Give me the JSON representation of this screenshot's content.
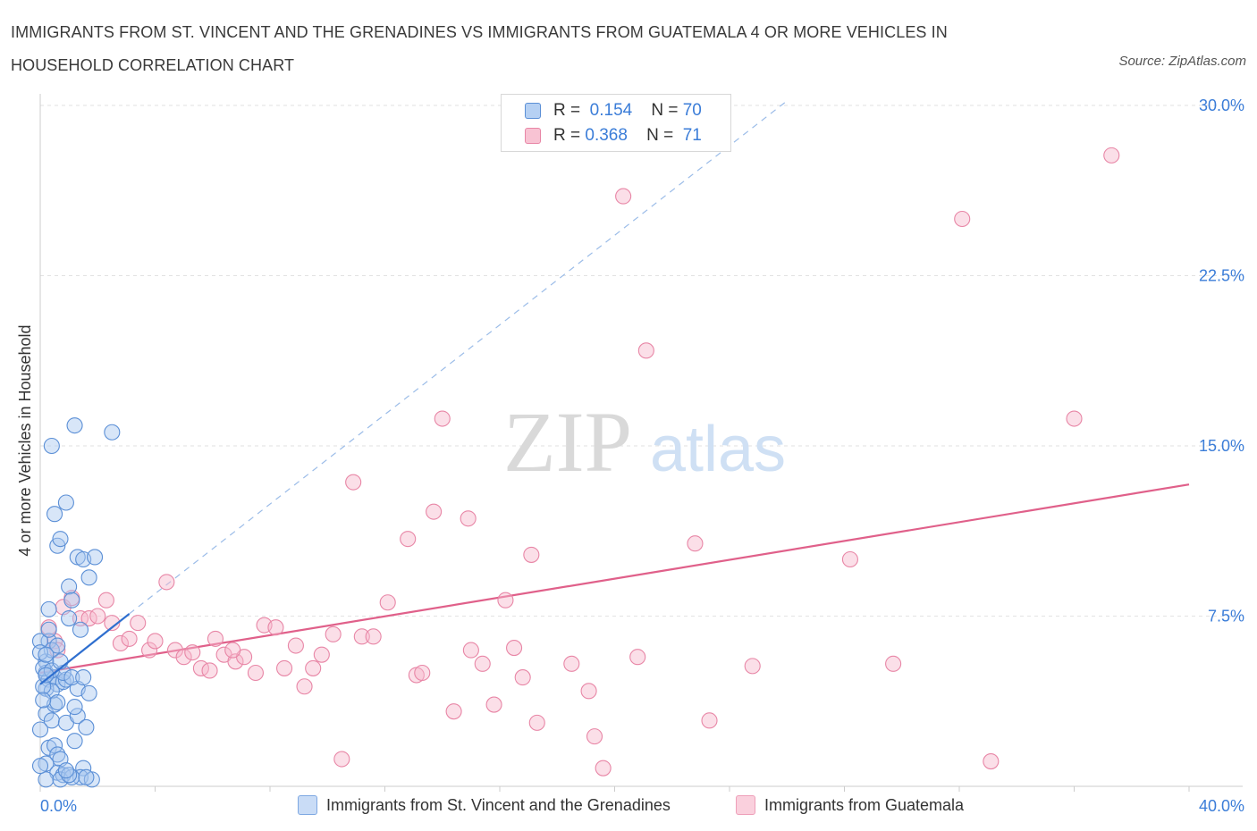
{
  "header": {
    "title": "IMMIGRANTS FROM ST. VINCENT AND THE GRENADINES VS IMMIGRANTS FROM GUATEMALA 4 OR MORE VEHICLES IN HOUSEHOLD CORRELATION CHART",
    "source": "Source: ZipAtlas.com"
  },
  "watermark": {
    "zip": "ZIP",
    "atlas": "atlas"
  },
  "legend": {
    "r_label": "R =",
    "n_label": "N =",
    "series": [
      {
        "r": "0.154",
        "n": "70"
      },
      {
        "r": "0.368",
        "n": "71"
      }
    ]
  },
  "colors": {
    "blue_fill": "#a9c8f0",
    "blue_stroke": "#5b8fd6",
    "blue_line": "#2f6fcf",
    "pink_fill": "#f6b9cc",
    "pink_stroke": "#e886a6",
    "pink_line": "#e0608a",
    "axis_text": "#3b7dd8",
    "grid": "#e2e2e2"
  },
  "chart_data": {
    "type": "scatter",
    "xlabel": "",
    "ylabel": "4 or more Vehicles in Household",
    "xlim": [
      0,
      40
    ],
    "ylim": [
      0,
      30
    ],
    "x_tick_labels": [
      "0.0%",
      "40.0%"
    ],
    "y_ticks": [
      7.5,
      15.0,
      22.5,
      30.0
    ],
    "y_tick_labels": [
      "7.5%",
      "15.0%",
      "22.5%",
      "30.0%"
    ],
    "grid": "horizontal dashed",
    "legend_placement": "top-center",
    "series": [
      {
        "name": "Immigrants from St. Vincent and the Grenadines",
        "color": "#a9c8f0",
        "trend": {
          "x": [
            0.0,
            3.1
          ],
          "y": [
            4.5,
            7.6
          ],
          "extended_to": [
            26.0,
            30.2
          ]
        },
        "points": [
          [
            0.2,
            5.5
          ],
          [
            0.3,
            7.8
          ],
          [
            0.4,
            15.0
          ],
          [
            0.5,
            12.0
          ],
          [
            0.6,
            10.6
          ],
          [
            0.7,
            10.9
          ],
          [
            0.9,
            12.5
          ],
          [
            1.0,
            8.8
          ],
          [
            1.1,
            8.2
          ],
          [
            1.3,
            10.1
          ],
          [
            1.5,
            10.0
          ],
          [
            1.7,
            9.2
          ],
          [
            1.9,
            10.1
          ],
          [
            1.2,
            15.9
          ],
          [
            2.5,
            15.6
          ],
          [
            0.3,
            6.4
          ],
          [
            0.4,
            6.0
          ],
          [
            0.6,
            6.2
          ],
          [
            0.2,
            5.0
          ],
          [
            0.3,
            4.7
          ],
          [
            0.5,
            4.8
          ],
          [
            0.6,
            4.5
          ],
          [
            0.8,
            4.6
          ],
          [
            0.9,
            4.7
          ],
          [
            0.2,
            4.3
          ],
          [
            0.4,
            4.2
          ],
          [
            1.3,
            4.3
          ],
          [
            1.7,
            4.1
          ],
          [
            0.2,
            3.2
          ],
          [
            0.4,
            2.9
          ],
          [
            0.9,
            2.8
          ],
          [
            1.3,
            3.1
          ],
          [
            1.6,
            2.6
          ],
          [
            0.3,
            1.7
          ],
          [
            0.5,
            1.8
          ],
          [
            0.6,
            1.4
          ],
          [
            0.7,
            1.2
          ],
          [
            0.2,
            1.0
          ],
          [
            0.6,
            0.6
          ],
          [
            0.8,
            0.5
          ],
          [
            1.5,
            0.8
          ],
          [
            1.4,
            0.4
          ],
          [
            0.2,
            0.3
          ],
          [
            0.7,
            0.3
          ],
          [
            1.1,
            0.4
          ],
          [
            1.8,
            0.3
          ],
          [
            0.0,
            6.4
          ],
          [
            0.0,
            5.9
          ],
          [
            0.1,
            5.2
          ],
          [
            0.1,
            4.4
          ],
          [
            0.2,
            5.8
          ],
          [
            1.0,
            7.4
          ],
          [
            1.4,
            6.9
          ],
          [
            0.5,
            3.6
          ],
          [
            1.2,
            3.5
          ],
          [
            0.0,
            2.5
          ],
          [
            0.0,
            0.9
          ],
          [
            1.0,
            0.5
          ],
          [
            0.3,
            6.9
          ],
          [
            0.8,
            5.0
          ],
          [
            1.1,
            4.8
          ],
          [
            0.4,
            5.1
          ],
          [
            0.2,
            4.9
          ],
          [
            1.5,
            4.8
          ],
          [
            0.6,
            3.7
          ],
          [
            0.9,
            0.7
          ],
          [
            1.6,
            0.4
          ],
          [
            0.1,
            3.8
          ],
          [
            0.7,
            5.5
          ],
          [
            1.2,
            2.0
          ]
        ]
      },
      {
        "name": "Immigrants from Guatemala",
        "color": "#f6b9cc",
        "trend": {
          "x": [
            0.0,
            40.0
          ],
          "y": [
            5.0,
            13.3
          ]
        },
        "points": [
          [
            0.3,
            7.0
          ],
          [
            0.5,
            6.4
          ],
          [
            0.6,
            6.0
          ],
          [
            0.8,
            7.9
          ],
          [
            1.1,
            8.3
          ],
          [
            1.4,
            7.4
          ],
          [
            1.7,
            7.4
          ],
          [
            2.0,
            7.5
          ],
          [
            2.3,
            8.2
          ],
          [
            2.5,
            7.2
          ],
          [
            2.8,
            6.3
          ],
          [
            3.1,
            6.5
          ],
          [
            3.4,
            7.2
          ],
          [
            3.8,
            6.0
          ],
          [
            4.0,
            6.4
          ],
          [
            4.4,
            9.0
          ],
          [
            4.7,
            6.0
          ],
          [
            5.0,
            5.7
          ],
          [
            5.3,
            5.9
          ],
          [
            5.6,
            5.2
          ],
          [
            5.9,
            5.1
          ],
          [
            6.1,
            6.5
          ],
          [
            6.4,
            5.8
          ],
          [
            6.8,
            5.5
          ],
          [
            7.1,
            5.7
          ],
          [
            7.5,
            5.0
          ],
          [
            7.8,
            7.1
          ],
          [
            8.2,
            7.0
          ],
          [
            8.5,
            5.2
          ],
          [
            8.9,
            6.2
          ],
          [
            9.2,
            4.4
          ],
          [
            9.5,
            5.2
          ],
          [
            9.8,
            5.8
          ],
          [
            10.2,
            6.7
          ],
          [
            10.5,
            1.2
          ],
          [
            10.9,
            13.4
          ],
          [
            11.2,
            6.6
          ],
          [
            11.6,
            6.6
          ],
          [
            12.1,
            8.1
          ],
          [
            12.8,
            10.9
          ],
          [
            13.1,
            4.9
          ],
          [
            13.3,
            5.0
          ],
          [
            13.7,
            12.1
          ],
          [
            14.0,
            16.2
          ],
          [
            14.4,
            3.3
          ],
          [
            14.9,
            11.8
          ],
          [
            15.0,
            6.0
          ],
          [
            15.4,
            5.4
          ],
          [
            15.8,
            3.6
          ],
          [
            16.2,
            8.2
          ],
          [
            16.5,
            6.1
          ],
          [
            16.8,
            4.8
          ],
          [
            17.1,
            10.2
          ],
          [
            17.3,
            2.8
          ],
          [
            18.5,
            5.4
          ],
          [
            19.1,
            4.2
          ],
          [
            19.3,
            2.2
          ],
          [
            19.6,
            0.8
          ],
          [
            20.3,
            26.0
          ],
          [
            20.8,
            5.7
          ],
          [
            21.1,
            19.2
          ],
          [
            22.8,
            10.7
          ],
          [
            23.3,
            2.9
          ],
          [
            24.8,
            5.3
          ],
          [
            28.2,
            10.0
          ],
          [
            29.7,
            5.4
          ],
          [
            32.1,
            25.0
          ],
          [
            33.1,
            1.1
          ],
          [
            36.0,
            16.2
          ],
          [
            37.3,
            27.8
          ],
          [
            6.7,
            6.0
          ]
        ]
      }
    ]
  },
  "bottom_legend": [
    "Immigrants from St. Vincent and the Grenadines",
    "Immigrants from Guatemala"
  ]
}
